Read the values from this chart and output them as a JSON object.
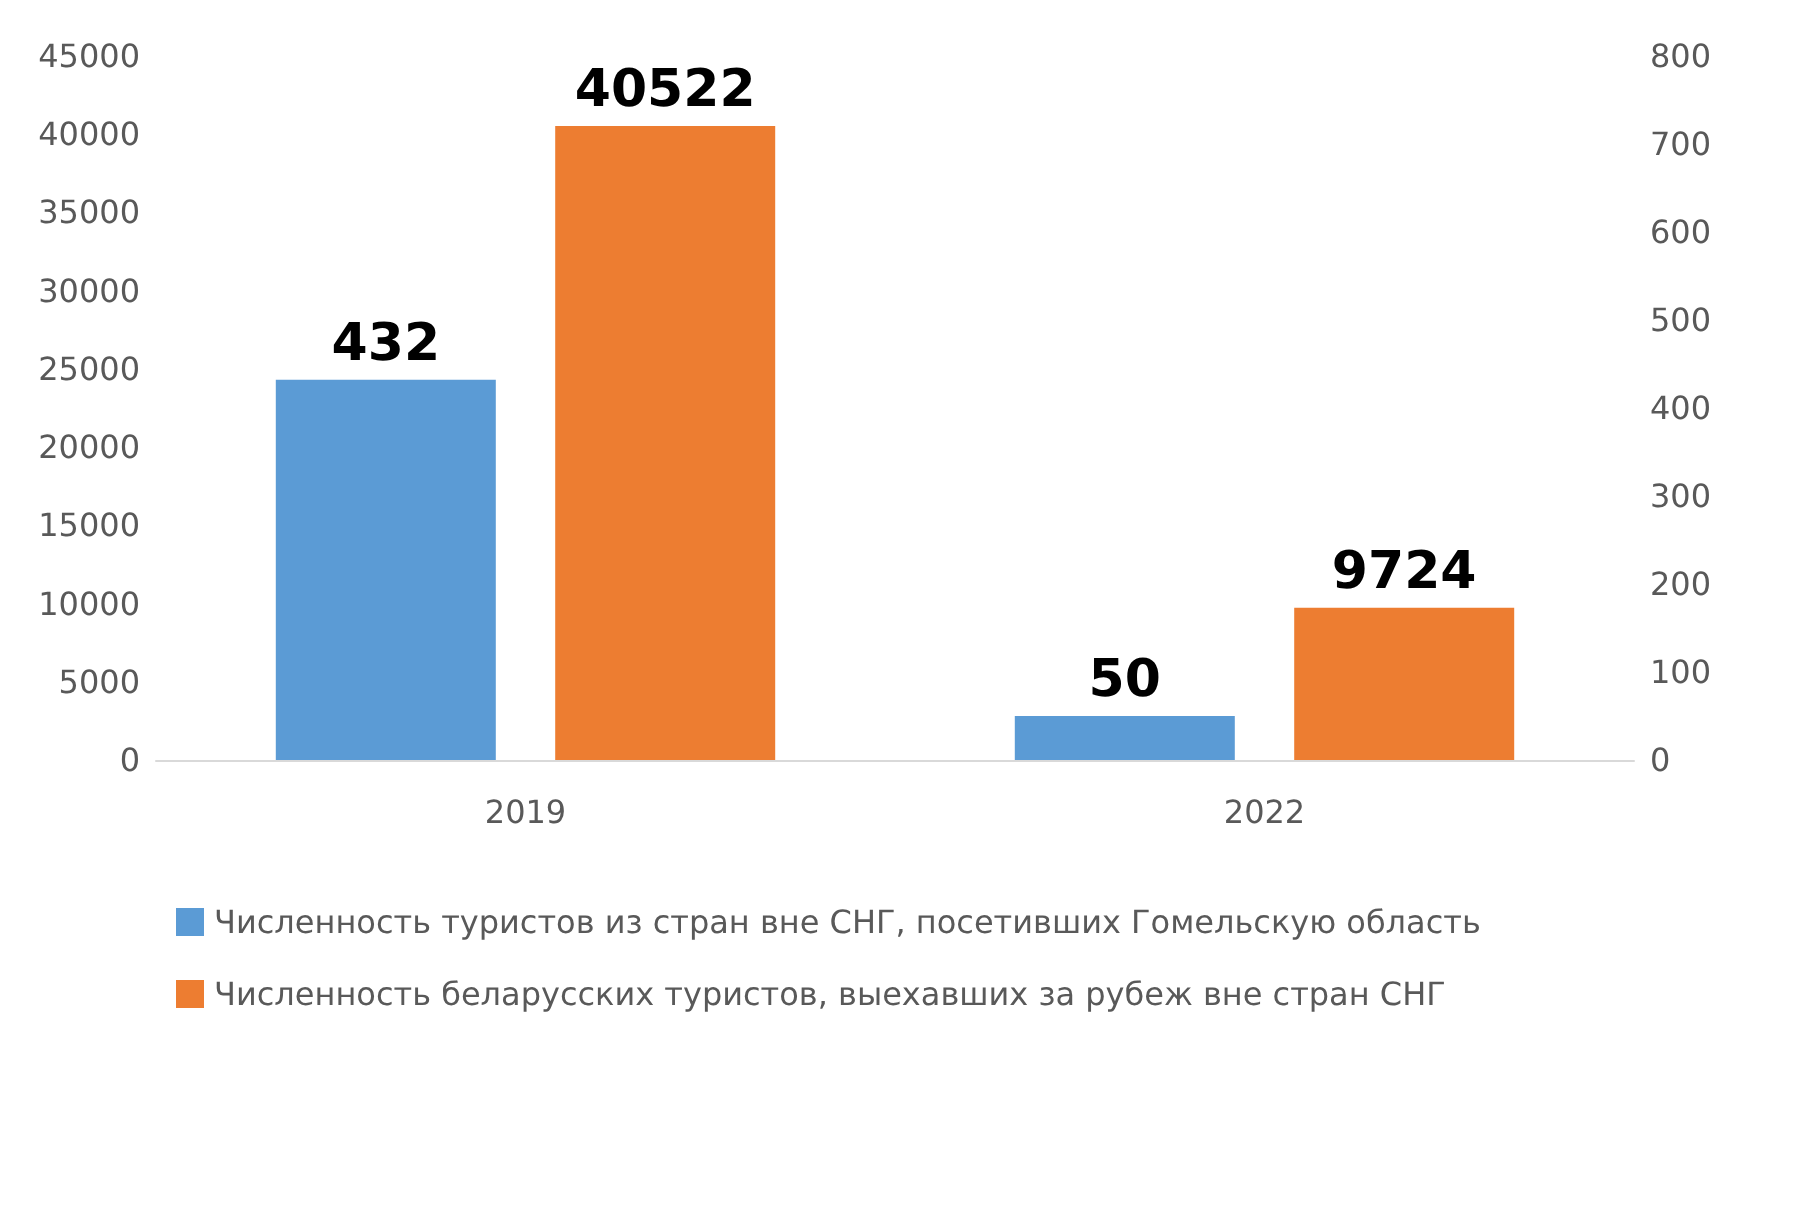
{
  "chart_data": {
    "type": "bar",
    "categories": [
      "2019",
      "2022"
    ],
    "series": [
      {
        "name": "Численность туристов из стран вне СНГ, посетивших Гомельскую область",
        "color": "#5b9bd5",
        "values": [
          432,
          50
        ],
        "axis": "y2"
      },
      {
        "name": "Численность беларусских туристов, выехавших за рубеж вне стран СНГ",
        "color": "#ed7d31",
        "values": [
          40522,
          9724
        ]
      }
    ],
    "ylim": [
      0,
      45000
    ],
    "yticks": [
      0,
      5000,
      10000,
      15000,
      20000,
      25000,
      30000,
      35000,
      40000,
      45000
    ],
    "y2lim": [
      0,
      800
    ],
    "y2ticks": [
      0,
      100,
      200,
      300,
      400,
      500,
      600,
      700,
      800
    ],
    "data_labels": true,
    "legend": "bottom",
    "grid": false
  }
}
